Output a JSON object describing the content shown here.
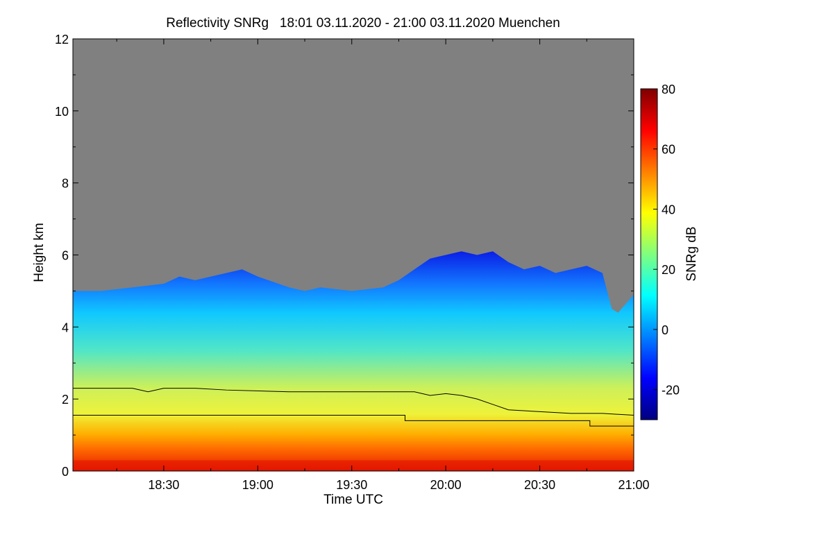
{
  "chart_data": {
    "type": "heatmap",
    "title": "Reflectivity SNRg   18:01 03.11.2020 - 21:00 03.11.2020 Muenchen",
    "xlabel": "Time UTC",
    "ylabel": "Height km",
    "colorbar_label": "SNRg dB",
    "xlim_minutes_utc": [
      1081,
      1260
    ],
    "ylim_km": [
      0,
      12
    ],
    "x_ticks": [
      {
        "minute": 1110,
        "label": "18:30"
      },
      {
        "minute": 1140,
        "label": "19:00"
      },
      {
        "minute": 1170,
        "label": "19:30"
      },
      {
        "minute": 1200,
        "label": "20:00"
      },
      {
        "minute": 1230,
        "label": "20:30"
      },
      {
        "minute": 1260,
        "label": "21:00"
      }
    ],
    "y_ticks": [
      0,
      2,
      4,
      6,
      8,
      10,
      12
    ],
    "colorbar_range_db": [
      -30,
      80
    ],
    "colorbar_ticks": [
      -20,
      0,
      20,
      40,
      60,
      80
    ],
    "colors": {
      "no_signal": "#808080",
      "colormap": [
        "#00007f",
        "#0000ff",
        "#007fff",
        "#00ffff",
        "#7fff7f",
        "#ffff00",
        "#ff7f00",
        "#ff0000",
        "#7f0000"
      ]
    },
    "echo_top_km": {
      "minutes": [
        1081,
        1090,
        1100,
        1110,
        1115,
        1120,
        1130,
        1135,
        1140,
        1150,
        1155,
        1160,
        1170,
        1180,
        1185,
        1190,
        1195,
        1200,
        1205,
        1210,
        1215,
        1220,
        1225,
        1230,
        1235,
        1240,
        1245,
        1250,
        1253,
        1255,
        1260
      ],
      "values": [
        5.0,
        5.0,
        5.1,
        5.2,
        5.4,
        5.3,
        5.5,
        5.6,
        5.4,
        5.1,
        5.0,
        5.1,
        5.0,
        5.1,
        5.3,
        5.6,
        5.9,
        6.0,
        6.1,
        6.0,
        6.1,
        5.8,
        5.6,
        5.7,
        5.5,
        5.6,
        5.7,
        5.5,
        4.5,
        4.4,
        4.9
      ]
    },
    "line_series": [
      {
        "name": "upper line",
        "minutes": [
          1081,
          1100,
          1105,
          1110,
          1115,
          1120,
          1130,
          1150,
          1170,
          1190,
          1195,
          1200,
          1205,
          1210,
          1215,
          1220,
          1230,
          1240,
          1250,
          1260
        ],
        "values": [
          2.3,
          2.3,
          2.2,
          2.3,
          2.3,
          2.3,
          2.25,
          2.2,
          2.2,
          2.2,
          2.1,
          2.15,
          2.1,
          2.0,
          1.85,
          1.7,
          1.65,
          1.6,
          1.6,
          1.55
        ]
      },
      {
        "name": "lower line",
        "minutes": [
          1081,
          1187,
          1187,
          1246,
          1246,
          1260
        ],
        "values": [
          1.55,
          1.55,
          1.4,
          1.4,
          1.25,
          1.25
        ]
      }
    ]
  }
}
